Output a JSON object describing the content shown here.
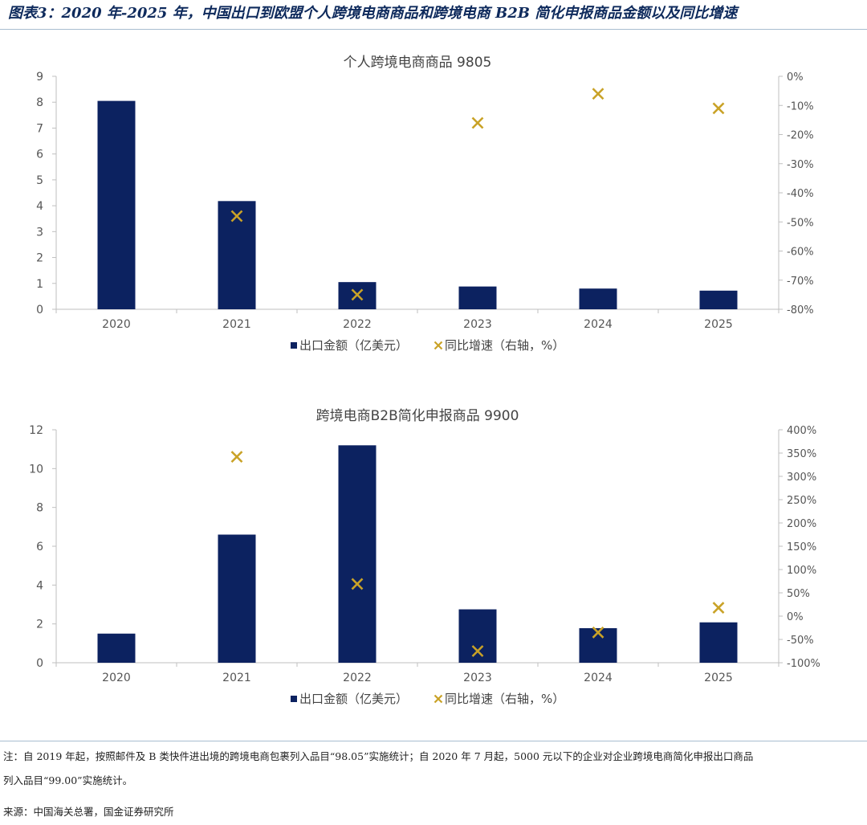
{
  "figure": {
    "title": "图表3：2020 年-2025 年，中国出口到欧盟个人跨境电商商品和跨境电商 B2B 简化申报商品金额以及同比增速",
    "note_line1": "注：自 2019 年起，按照邮件及 B 类快件进出境的跨境电商包裹列入品目“98.05”实施统计；自 2020 年 7 月起，5000 元以下的企业对企业跨境电商简化申报出口商品",
    "note_line2": "列入品目“99.00”实施统计。",
    "source": "来源：中国海关总署，国金证券研究所"
  },
  "colors": {
    "bar": "#0c2260",
    "marker": "#c9a227",
    "axis": "#bfbfbf",
    "rule": "#a8bdd0"
  },
  "chart_data": [
    {
      "type": "bar",
      "title": "个人跨境电商商品 9805",
      "categories": [
        "2020",
        "2021",
        "2022",
        "2023",
        "2024",
        "2025"
      ],
      "series": [
        {
          "name": "出口金额（亿美元）",
          "axis": "left",
          "kind": "bar",
          "values": [
            8.05,
            4.18,
            1.05,
            0.88,
            0.8,
            0.72
          ]
        },
        {
          "name": "同比增速（右轴，%）",
          "axis": "right",
          "kind": "scatter",
          "marker": "x",
          "values": [
            null,
            -48,
            -75,
            -16,
            -6,
            -11
          ]
        }
      ],
      "ylim": [
        0,
        9
      ],
      "yticks": [
        0,
        1,
        2,
        3,
        4,
        5,
        6,
        7,
        8,
        9
      ],
      "y2lim": [
        -80,
        0
      ],
      "y2ticks": [
        0,
        -10,
        -20,
        -30,
        -40,
        -50,
        -60,
        -70,
        -80
      ],
      "y2_suffix": "%",
      "legend": "bottom",
      "grid": false
    },
    {
      "type": "bar",
      "title": "跨境电商B2B简化申报商品 9900",
      "categories": [
        "2020",
        "2021",
        "2022",
        "2023",
        "2024",
        "2025"
      ],
      "series": [
        {
          "name": "出口金额（亿美元）",
          "axis": "left",
          "kind": "bar",
          "values": [
            1.5,
            6.6,
            11.2,
            2.75,
            1.78,
            2.08
          ]
        },
        {
          "name": "同比增速（右轴，%）",
          "axis": "right",
          "kind": "scatter",
          "marker": "x",
          "values": [
            null,
            342,
            69,
            -75,
            -35,
            18
          ]
        }
      ],
      "ylim": [
        0,
        12
      ],
      "yticks": [
        0,
        2,
        4,
        6,
        8,
        10,
        12
      ],
      "y2lim": [
        -100,
        400
      ],
      "y2ticks": [
        400,
        350,
        300,
        250,
        200,
        150,
        100,
        50,
        0,
        -50,
        -100
      ],
      "y2_suffix": "%",
      "legend": "bottom",
      "grid": false
    }
  ]
}
